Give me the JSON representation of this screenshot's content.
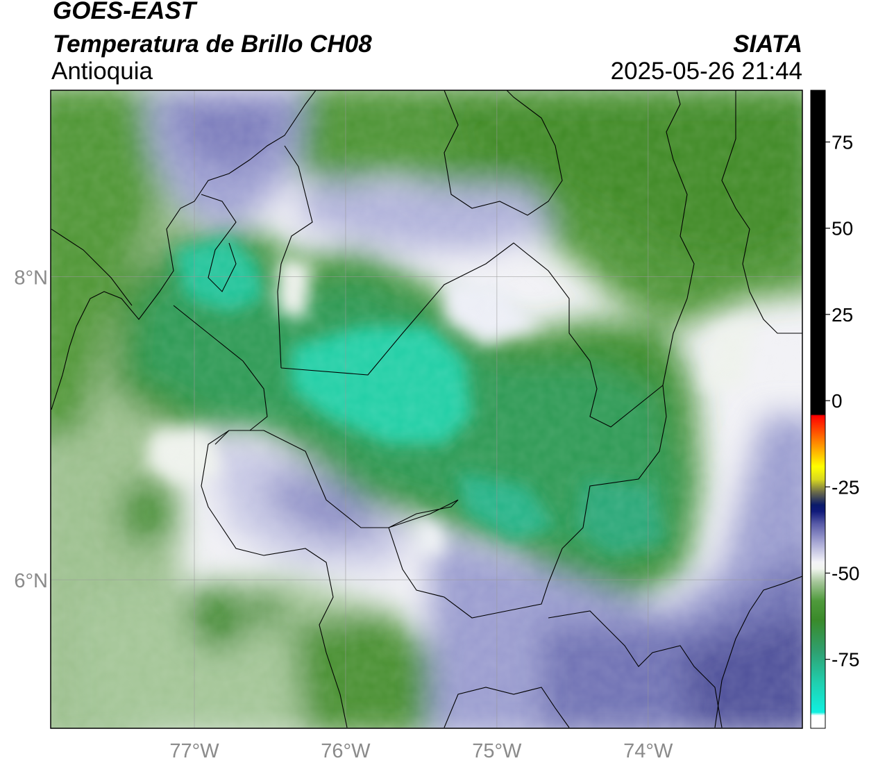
{
  "header": {
    "satellite": "GOES-EAST",
    "product": "Temperatura de Brillo CH08",
    "region": "Antioquia",
    "agency": "SIATA",
    "datetime": "2025-05-26 21:44"
  },
  "map": {
    "lon_range": [
      -77.95,
      -72.98
    ],
    "lat_range": [
      5.02,
      9.23
    ],
    "lon_ticks": [
      {
        "value": -77,
        "label": "77°W"
      },
      {
        "value": -76,
        "label": "76°W"
      },
      {
        "value": -75,
        "label": "75°W"
      },
      {
        "value": -74,
        "label": "74°W"
      }
    ],
    "lat_ticks": [
      {
        "value": 8,
        "label": "8°N"
      },
      {
        "value": 6,
        "label": "6°N"
      }
    ],
    "grid": true,
    "colors": {
      "cold_cyan": "#22d6b0",
      "green_dark": "#3f8a28",
      "green_light": "#c9ddc2",
      "white": "#f2f2f6",
      "lavender": "#b6b8dc",
      "purple": "#6a6cae",
      "purple_dark": "#4c4e96"
    }
  },
  "colorbar": {
    "range": [
      -95,
      90
    ],
    "ticks": [
      {
        "value": 75,
        "label": "75"
      },
      {
        "value": 50,
        "label": "50"
      },
      {
        "value": 25,
        "label": "25"
      },
      {
        "value": 0,
        "label": "0"
      },
      {
        "value": -25,
        "label": "-25"
      },
      {
        "value": -50,
        "label": "-50"
      },
      {
        "value": -75,
        "label": "-75"
      }
    ]
  }
}
